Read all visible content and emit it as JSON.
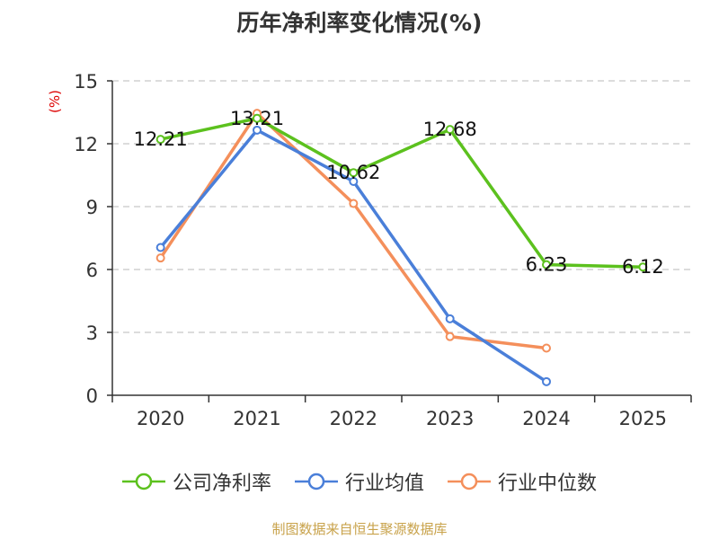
{
  "chart_data": {
    "type": "line",
    "title": "历年净利率变化情况(%)",
    "ylabel": "(%)",
    "xlabel": "",
    "categories": [
      "2020",
      "2021",
      "2022",
      "2023",
      "2024",
      "2025"
    ],
    "ylim": [
      0,
      15
    ],
    "yticks": [
      0,
      3,
      6,
      9,
      12,
      15
    ],
    "grid": true,
    "legend_position": "bottom",
    "series": [
      {
        "name": "公司净利率",
        "color": "#5cc11e",
        "values": [
          12.21,
          13.21,
          10.62,
          12.68,
          6.23,
          6.12
        ],
        "labels": [
          "12.21",
          "13.21",
          "10.62",
          "12.68",
          "6.23",
          "6.12"
        ]
      },
      {
        "name": "行业均值",
        "color": "#4a7fd9",
        "values": [
          7.05,
          12.65,
          10.2,
          3.65,
          0.65,
          null
        ]
      },
      {
        "name": "行业中位数",
        "color": "#f48f5b",
        "values": [
          6.55,
          13.45,
          9.15,
          2.8,
          2.25,
          null
        ]
      }
    ]
  },
  "footer": {
    "source": "制图数据来自恒生聚源数据库"
  }
}
